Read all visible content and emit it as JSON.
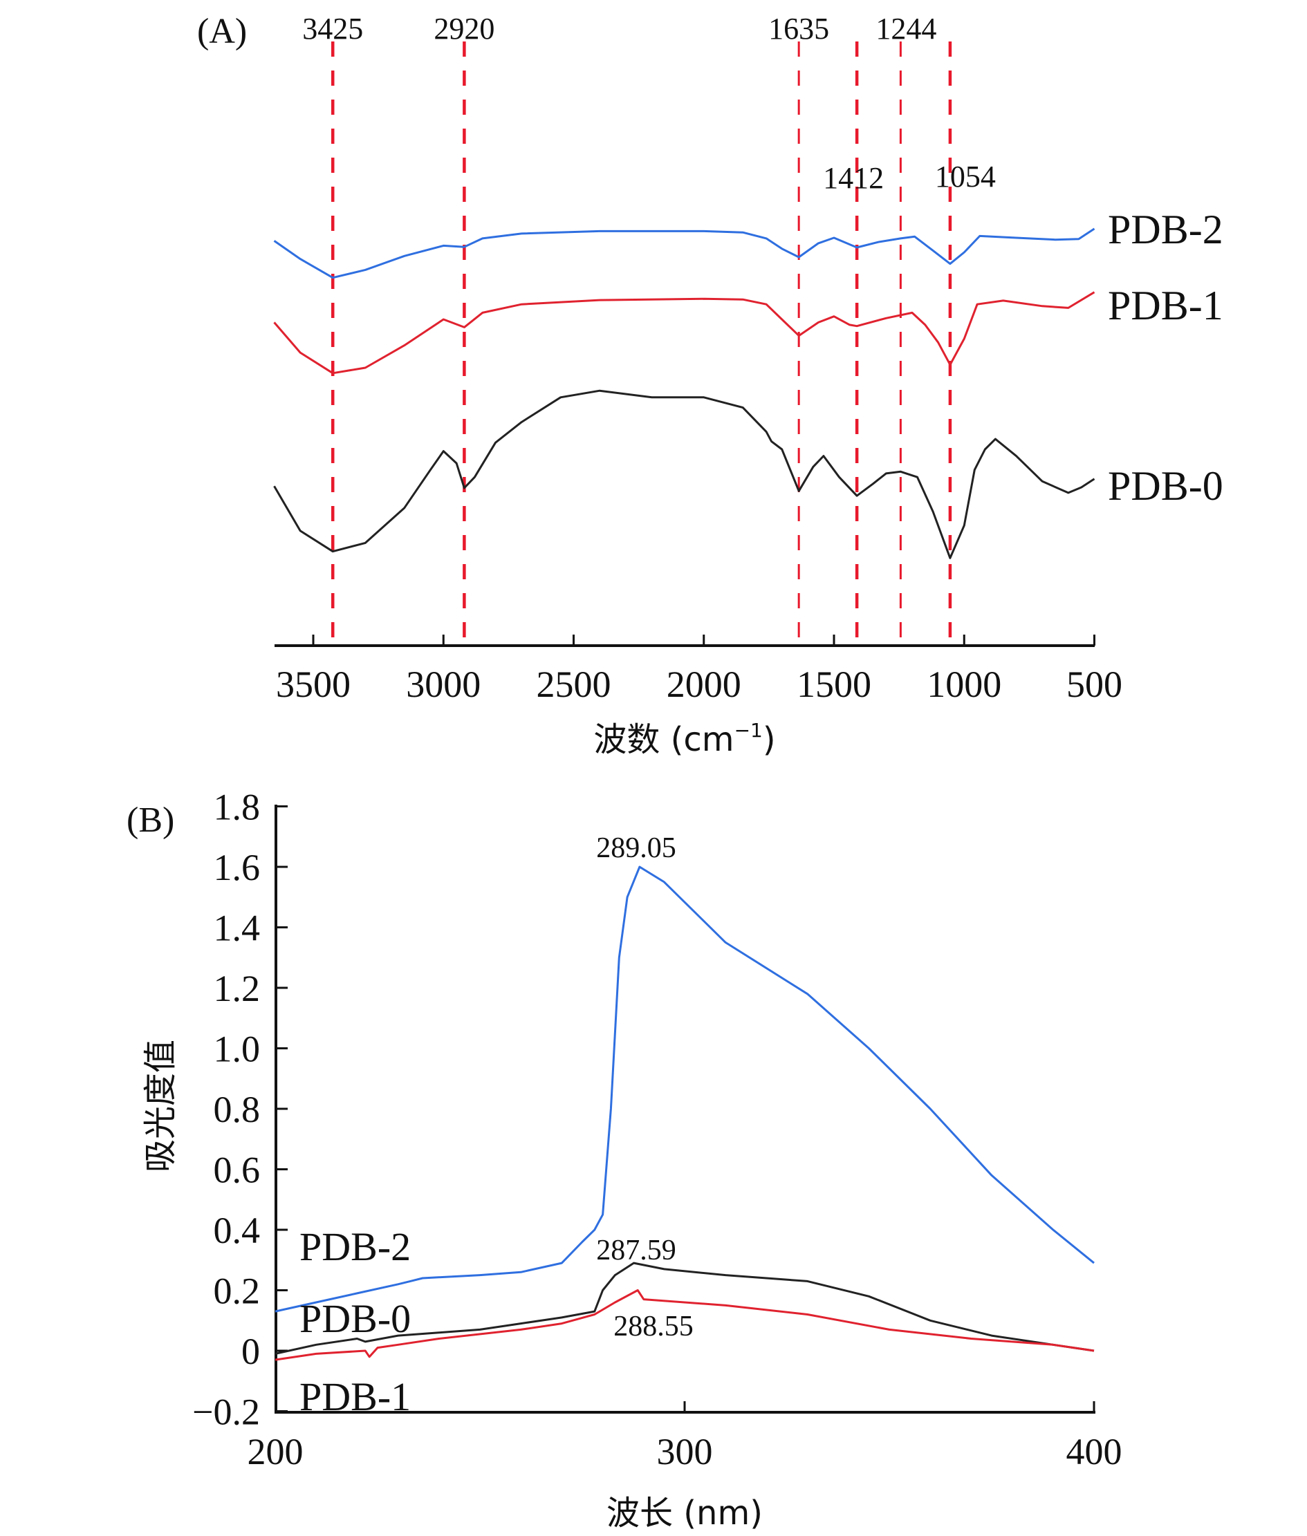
{
  "chart_data": [
    {
      "type": "line",
      "panel_label": "(A)",
      "title": "",
      "xlabel_prefix": "波数 (cm",
      "xlabel_sup": "−1",
      "xlabel_suffix": ")",
      "ylabel": "",
      "xlim": [
        3650,
        500
      ],
      "x_reversed": true,
      "y_units": "relative transmittance (a.u., no axis shown)",
      "ylim": [
        0,
        100
      ],
      "grid": false,
      "x_ticks": [
        3500,
        3000,
        2500,
        2000,
        1500,
        1000,
        500
      ],
      "x_tick_labels": [
        "3500",
        "3000",
        "2500",
        "2000",
        "1500",
        "1000",
        "500"
      ],
      "reference_lines": [
        {
          "x": 3425,
          "label": "3425"
        },
        {
          "x": 2920,
          "label": "2920"
        },
        {
          "x": 1635,
          "label": "1635"
        },
        {
          "x": 1412,
          "label": "1412"
        },
        {
          "x": 1244,
          "label": "1244"
        },
        {
          "x": 1054,
          "label": "1054"
        }
      ],
      "reference_line_color": "#e8192c",
      "legend_placement": "right-of-curves",
      "series": [
        {
          "name": "PDB-2",
          "color": "#2f6fe0",
          "x": [
            3650,
            3550,
            3425,
            3300,
            3150,
            3000,
            2920,
            2850,
            2700,
            2400,
            2000,
            1850,
            1760,
            1700,
            1635,
            1560,
            1500,
            1412,
            1330,
            1244,
            1190,
            1120,
            1054,
            1000,
            940,
            800,
            650,
            560,
            500
          ],
          "y": [
            67.0,
            64.0,
            60.9,
            62.2,
            64.5,
            66.2,
            66.0,
            67.4,
            68.2,
            68.6,
            68.6,
            68.4,
            67.4,
            65.7,
            64.3,
            66.6,
            67.5,
            65.9,
            66.8,
            67.4,
            67.7,
            65.4,
            63.2,
            65.1,
            67.8,
            67.5,
            67.2,
            67.3,
            69.0
          ]
        },
        {
          "name": "PDB-1",
          "color": "#e0222f",
          "x": [
            3650,
            3550,
            3425,
            3300,
            3150,
            3000,
            2920,
            2850,
            2700,
            2400,
            2000,
            1850,
            1760,
            1700,
            1635,
            1560,
            1500,
            1440,
            1412,
            1300,
            1200,
            1150,
            1100,
            1054,
            1000,
            950,
            850,
            700,
            600,
            500
          ],
          "y": [
            53.5,
            48.5,
            45.1,
            46.0,
            49.7,
            54.0,
            52.7,
            55.1,
            56.5,
            57.2,
            57.4,
            57.3,
            56.5,
            54.0,
            51.3,
            53.5,
            54.5,
            53.1,
            52.9,
            54.2,
            55.1,
            53.1,
            50.2,
            46.5,
            50.8,
            56.5,
            57.1,
            56.2,
            55.9,
            58.5
          ]
        },
        {
          "name": "PDB-0",
          "color": "#222222",
          "x": [
            3650,
            3550,
            3425,
            3300,
            3150,
            3050,
            3000,
            2950,
            2920,
            2880,
            2800,
            2700,
            2550,
            2400,
            2200,
            2000,
            1850,
            1760,
            1740,
            1700,
            1635,
            1580,
            1540,
            1480,
            1412,
            1350,
            1300,
            1244,
            1180,
            1120,
            1054,
            1000,
            960,
            920,
            880,
            800,
            700,
            600,
            550,
            500
          ],
          "y": [
            26.4,
            19.0,
            15.6,
            17.0,
            22.8,
            29.1,
            32.2,
            30.2,
            26.1,
            27.9,
            33.6,
            37.0,
            41.1,
            42.2,
            41.1,
            41.1,
            39.4,
            35.4,
            33.8,
            32.5,
            25.6,
            29.6,
            31.4,
            27.9,
            24.8,
            26.8,
            28.5,
            28.8,
            27.9,
            22.2,
            14.5,
            19.9,
            29.1,
            32.5,
            34.2,
            31.4,
            27.2,
            25.3,
            26.2,
            27.6
          ]
        }
      ]
    },
    {
      "type": "line",
      "panel_label": "(B)",
      "title": "",
      "xlabel": "波长 (nm)",
      "ylabel": "吸光度值",
      "xlim": [
        200,
        400
      ],
      "ylim": [
        -0.2,
        1.8
      ],
      "grid": false,
      "x_ticks": [
        200,
        300,
        400
      ],
      "x_tick_labels": [
        "200",
        "300",
        "400"
      ],
      "y_ticks": [
        -0.2,
        0,
        0.2,
        0.4,
        0.6,
        0.8,
        1.0,
        1.2,
        1.4,
        1.6,
        1.8
      ],
      "y_tick_labels": [
        "−0.2",
        "0",
        "0.2",
        "0.4",
        "0.6",
        "0.8",
        "1.0",
        "1.2",
        "1.4",
        "1.6",
        "1.8"
      ],
      "legend_placement": "left-inside",
      "annotations": [
        {
          "text": "289.05",
          "x": 289.05,
          "series": "PDB-2"
        },
        {
          "text": "287.59",
          "x": 287.59,
          "series": "PDB-0"
        },
        {
          "text": "288.55",
          "x": 288.55,
          "series": "PDB-1"
        }
      ],
      "series": [
        {
          "name": "PDB-2",
          "color": "#2f6fe0",
          "x": [
            200,
            210,
            220,
            230,
            233,
            236,
            250,
            260,
            270,
            275,
            278,
            280,
            282,
            284,
            286,
            289,
            295,
            310,
            330,
            345,
            360,
            375,
            390,
            400
          ],
          "y": [
            0.13,
            0.16,
            0.19,
            0.22,
            0.23,
            0.24,
            0.25,
            0.26,
            0.29,
            0.36,
            0.4,
            0.45,
            0.8,
            1.3,
            1.5,
            1.6,
            1.55,
            1.35,
            1.18,
            1.0,
            0.8,
            0.58,
            0.4,
            0.29
          ]
        },
        {
          "name": "PDB-0",
          "color": "#222222",
          "x": [
            200,
            210,
            220,
            222,
            230,
            240,
            250,
            260,
            270,
            278,
            280,
            283,
            287.59,
            295,
            310,
            330,
            345,
            360,
            375,
            390,
            400
          ],
          "y": [
            -0.01,
            0.02,
            0.04,
            0.03,
            0.05,
            0.06,
            0.07,
            0.09,
            0.11,
            0.13,
            0.2,
            0.25,
            0.29,
            0.27,
            0.25,
            0.23,
            0.18,
            0.1,
            0.05,
            0.02,
            0.0
          ]
        },
        {
          "name": "PDB-1",
          "color": "#e0222f",
          "x": [
            200,
            210,
            222,
            223,
            225,
            230,
            240,
            260,
            270,
            278,
            283,
            288.55,
            290,
            310,
            330,
            350,
            370,
            390,
            400
          ],
          "y": [
            -0.03,
            -0.01,
            0.0,
            -0.02,
            0.01,
            0.02,
            0.04,
            0.07,
            0.09,
            0.12,
            0.16,
            0.2,
            0.17,
            0.15,
            0.12,
            0.07,
            0.04,
            0.02,
            0.0
          ]
        }
      ]
    }
  ]
}
